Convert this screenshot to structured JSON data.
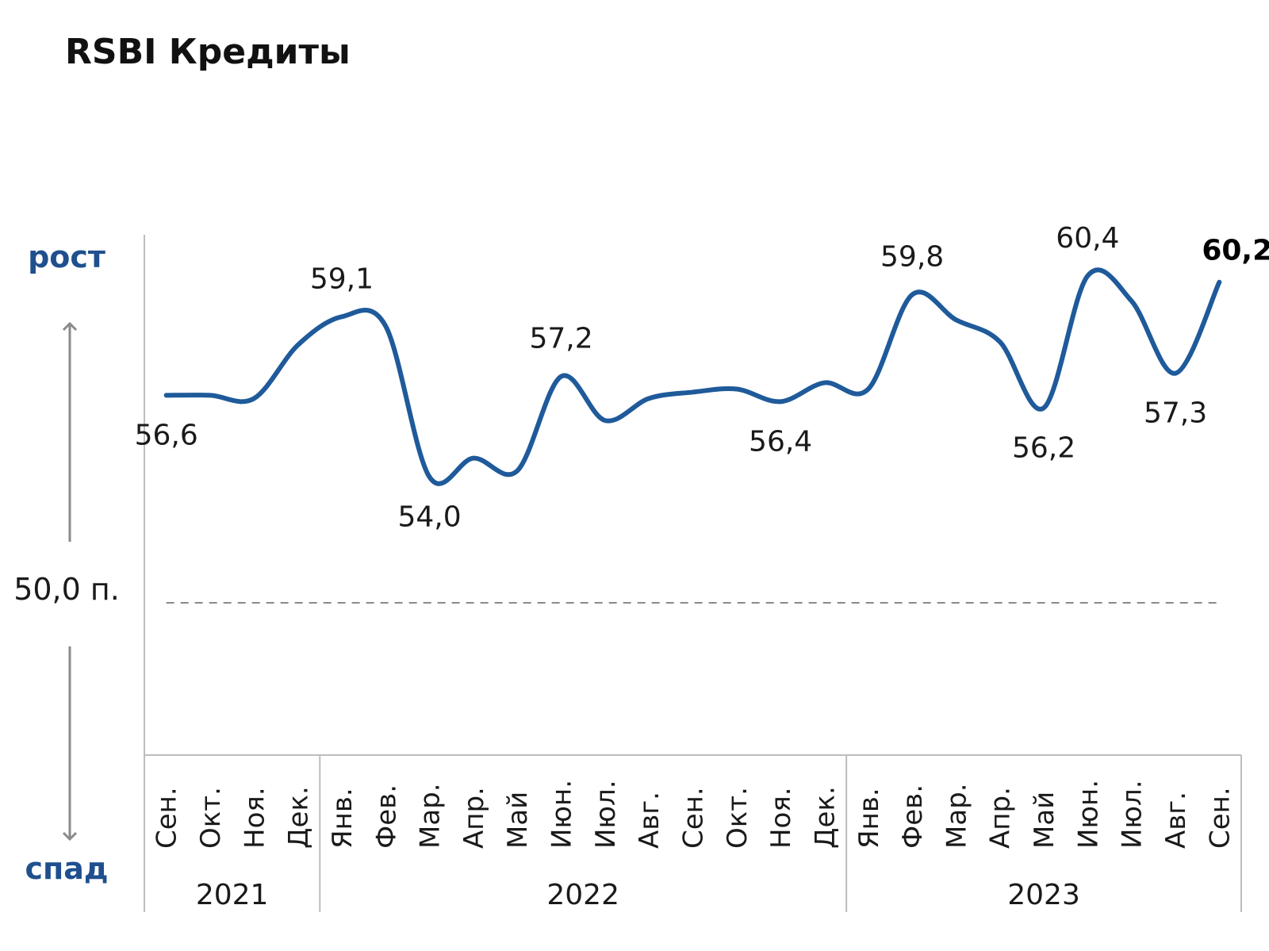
{
  "chart_data": {
    "type": "line",
    "title": "RSBI Кредиты",
    "up_label": "рост",
    "down_label": "спад",
    "threshold": {
      "value": 50.0,
      "label": "50,0 п."
    },
    "categories": [
      "Сен.",
      "Окт.",
      "Ноя.",
      "Дек.",
      "Янв.",
      "Фев.",
      "Мар.",
      "Апр.",
      "Май",
      "Июн.",
      "Июл.",
      "Авг.",
      "Сен.",
      "Окт.",
      "Ноя.",
      "Дек.",
      "Янв.",
      "Фев.",
      "Мар.",
      "Апр.",
      "Май",
      "Июн.",
      "Июл.",
      "Авг.",
      "Сен."
    ],
    "years": [
      {
        "label": "2021",
        "start": 0,
        "end": 3
      },
      {
        "label": "2022",
        "start": 4,
        "end": 15
      },
      {
        "label": "2023",
        "start": 16,
        "end": 24
      }
    ],
    "series": [
      {
        "values": [
          56.6,
          56.6,
          56.5,
          58.2,
          59.1,
          58.8,
          54.0,
          54.6,
          54.2,
          57.2,
          55.8,
          56.5,
          56.7,
          56.8,
          56.4,
          57.0,
          56.8,
          59.8,
          59.0,
          58.3,
          56.2,
          60.4,
          59.6,
          57.3,
          60.2
        ],
        "color": "#1f5a9a"
      }
    ],
    "data_labels": [
      {
        "index": 0,
        "text": "56,6",
        "position": "below"
      },
      {
        "index": 4,
        "text": "59,1",
        "position": "above"
      },
      {
        "index": 6,
        "text": "54,0",
        "position": "below"
      },
      {
        "index": 9,
        "text": "57,2",
        "position": "above"
      },
      {
        "index": 14,
        "text": "56,4",
        "position": "below"
      },
      {
        "index": 17,
        "text": "59,8",
        "position": "above"
      },
      {
        "index": 20,
        "text": "56,2",
        "position": "below"
      },
      {
        "index": 21,
        "text": "60,4",
        "position": "above"
      },
      {
        "index": 23,
        "text": "57,3",
        "position": "below"
      },
      {
        "index": 24,
        "text": "60,2",
        "position": "right",
        "bold": true
      }
    ],
    "colors": {
      "line": "#1f5a9a",
      "side_labels": "#1f4f8e",
      "arrows": "#8a8a8a",
      "threshold": "#8a8a8a"
    },
    "grid": false,
    "legend": "none"
  }
}
